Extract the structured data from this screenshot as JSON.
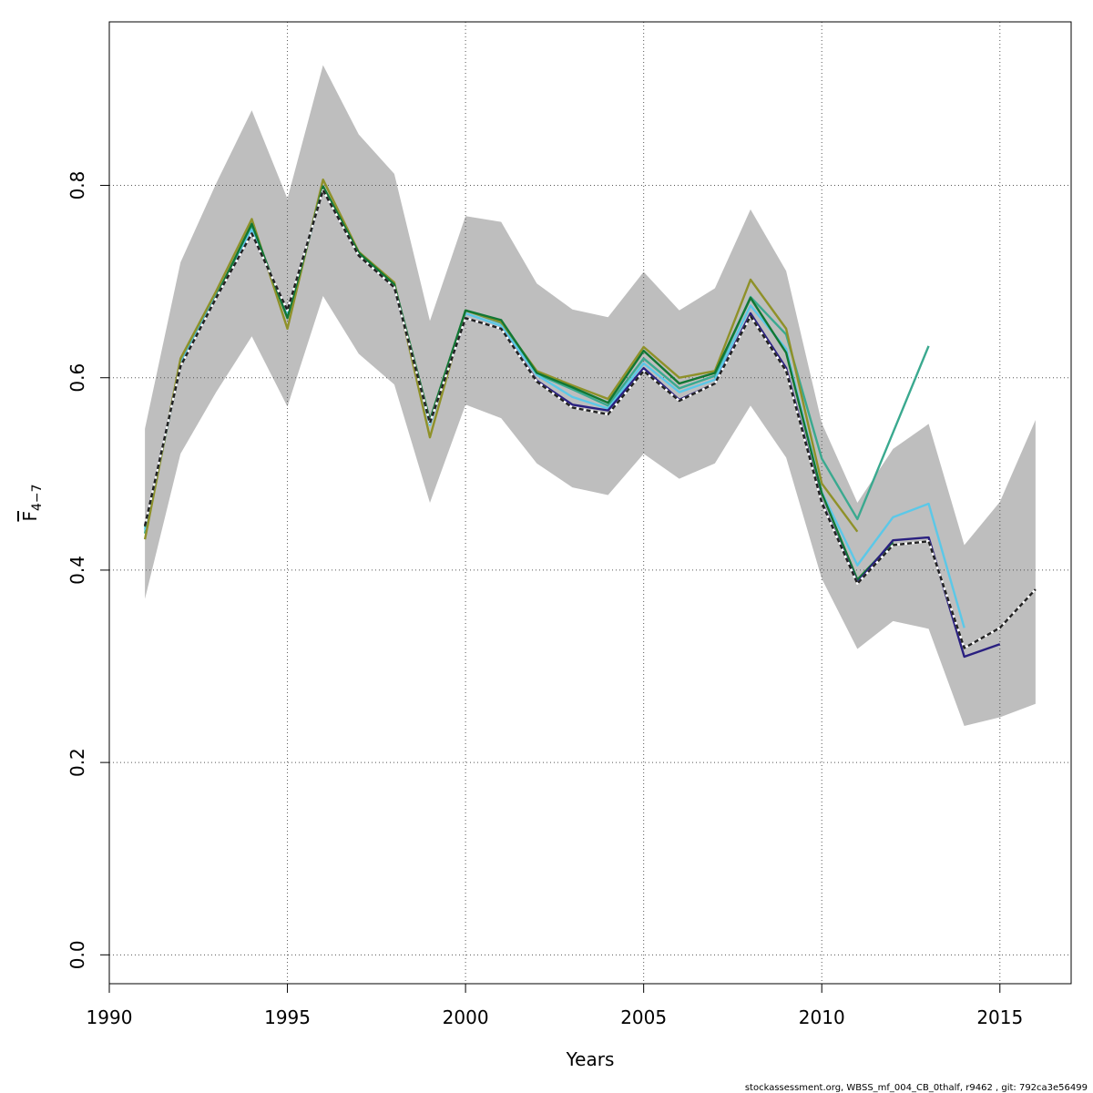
{
  "chart_data": {
    "type": "line",
    "xlabel": "Years",
    "ylabel": "F",
    "ylabel_subscript": "4−7",
    "xlim": [
      1990,
      2017
    ],
    "ylim": [
      -0.03,
      0.97
    ],
    "x_ticks": [
      1990,
      1995,
      2000,
      2005,
      2010,
      2015
    ],
    "y_ticks": [
      0.0,
      0.2,
      0.4,
      0.6,
      0.8
    ],
    "y_tick_labels": [
      "0.0",
      "0.2",
      "0.4",
      "0.6",
      "0.8"
    ],
    "grid": true,
    "footer": "stockassessment.org, WBSS_mf_004_CB_0thalf, r9462 , git: 792ca3e56499",
    "confidence_band": {
      "color": "#bebebe",
      "x": [
        1991,
        1992,
        1993,
        1994,
        1995,
        1996,
        1997,
        1998,
        1999,
        2000,
        2001,
        2002,
        2003,
        2004,
        2005,
        2006,
        2007,
        2008,
        2009,
        2010,
        2011,
        2012,
        2013,
        2014,
        2015,
        2016
      ],
      "lower": [
        0.37,
        0.521,
        0.585,
        0.643,
        0.57,
        0.685,
        0.625,
        0.593,
        0.47,
        0.572,
        0.558,
        0.511,
        0.486,
        0.478,
        0.521,
        0.495,
        0.511,
        0.571,
        0.517,
        0.391,
        0.318,
        0.347,
        0.339,
        0.238,
        0.247,
        0.261
      ],
      "upper": [
        0.547,
        0.72,
        0.802,
        0.878,
        0.786,
        0.925,
        0.853,
        0.812,
        0.659,
        0.768,
        0.762,
        0.698,
        0.671,
        0.663,
        0.71,
        0.67,
        0.693,
        0.775,
        0.711,
        0.553,
        0.47,
        0.526,
        0.552,
        0.426,
        0.471,
        0.556
      ]
    },
    "series": [
      {
        "color": "#3aa98f",
        "dashed": false,
        "x": [
          1991,
          1992,
          1993,
          1994,
          1995,
          1996,
          1997,
          1998,
          1999,
          2000,
          2001,
          2002,
          2003,
          2004,
          2005,
          2006,
          2007,
          2008,
          2009,
          2010,
          2011,
          2012,
          2013
        ],
        "values": [
          0.438,
          0.615,
          0.686,
          0.756,
          0.664,
          0.797,
          0.729,
          0.696,
          0.552,
          0.67,
          0.657,
          0.604,
          0.588,
          0.571,
          0.62,
          0.589,
          0.602,
          0.684,
          0.645,
          0.516,
          0.453,
          0.543,
          0.633
        ]
      },
      {
        "color": "#5bc8e8",
        "dashed": false,
        "x": [
          1991,
          1992,
          1993,
          1994,
          1995,
          1996,
          1997,
          1998,
          1999,
          2000,
          2001,
          2002,
          2003,
          2004,
          2005,
          2006,
          2007,
          2008,
          2009,
          2010,
          2011,
          2012,
          2013,
          2014
        ],
        "values": [
          0.442,
          0.614,
          0.685,
          0.754,
          0.665,
          0.797,
          0.728,
          0.695,
          0.551,
          0.667,
          0.654,
          0.603,
          0.58,
          0.568,
          0.615,
          0.585,
          0.598,
          0.675,
          0.63,
          0.481,
          0.405,
          0.455,
          0.469,
          0.34
        ]
      },
      {
        "color": "#8f9129",
        "dashed": false,
        "x": [
          1991,
          1992,
          1993,
          1994,
          1995,
          1996,
          1997,
          1998,
          1999,
          2000,
          2001,
          2002,
          2003,
          2004,
          2005,
          2006,
          2007,
          2008,
          2009,
          2010,
          2011
        ],
        "values": [
          0.432,
          0.62,
          0.69,
          0.765,
          0.651,
          0.806,
          0.731,
          0.699,
          0.538,
          0.67,
          0.658,
          0.607,
          0.592,
          0.578,
          0.632,
          0.6,
          0.607,
          0.702,
          0.651,
          0.49,
          0.44
        ]
      },
      {
        "color": "#117733",
        "dashed": false,
        "x": [
          1991,
          1992,
          1993,
          1994,
          1995,
          1996,
          1997,
          1998,
          1999,
          2000,
          2001,
          2002,
          2003,
          2004,
          2005,
          2006,
          2007,
          2008,
          2009,
          2010,
          2011,
          2012
        ],
        "values": [
          0.445,
          0.612,
          0.684,
          0.76,
          0.662,
          0.799,
          0.73,
          0.697,
          0.556,
          0.67,
          0.66,
          0.605,
          0.59,
          0.574,
          0.628,
          0.594,
          0.605,
          0.683,
          0.626,
          0.48,
          0.39,
          0.429
        ]
      },
      {
        "color": "#2a2080",
        "dashed": false,
        "x": [
          1991,
          1992,
          1993,
          1994,
          1995,
          1996,
          1997,
          1998,
          1999,
          2000,
          2001,
          2002,
          2003,
          2004,
          2005,
          2006,
          2007,
          2008,
          2009,
          2010,
          2011,
          2012,
          2013,
          2014,
          2015
        ],
        "values": [
          0.446,
          0.612,
          0.683,
          0.75,
          0.67,
          0.795,
          0.727,
          0.694,
          0.553,
          0.662,
          0.651,
          0.597,
          0.572,
          0.566,
          0.61,
          0.577,
          0.594,
          0.667,
          0.61,
          0.471,
          0.387,
          0.431,
          0.434,
          0.31,
          0.323
        ]
      },
      {
        "color": "#222222",
        "dashed": true,
        "x": [
          1991,
          1992,
          1993,
          1994,
          1995,
          1996,
          1997,
          1998,
          1999,
          2000,
          2001,
          2002,
          2003,
          2004,
          2005,
          2006,
          2007,
          2008,
          2009,
          2010,
          2011,
          2012,
          2013,
          2014,
          2015,
          2016
        ],
        "values": [
          0.446,
          0.612,
          0.683,
          0.75,
          0.67,
          0.795,
          0.727,
          0.694,
          0.553,
          0.662,
          0.651,
          0.596,
          0.569,
          0.562,
          0.607,
          0.576,
          0.594,
          0.664,
          0.607,
          0.47,
          0.386,
          0.426,
          0.43,
          0.319,
          0.34,
          0.38
        ]
      }
    ]
  }
}
